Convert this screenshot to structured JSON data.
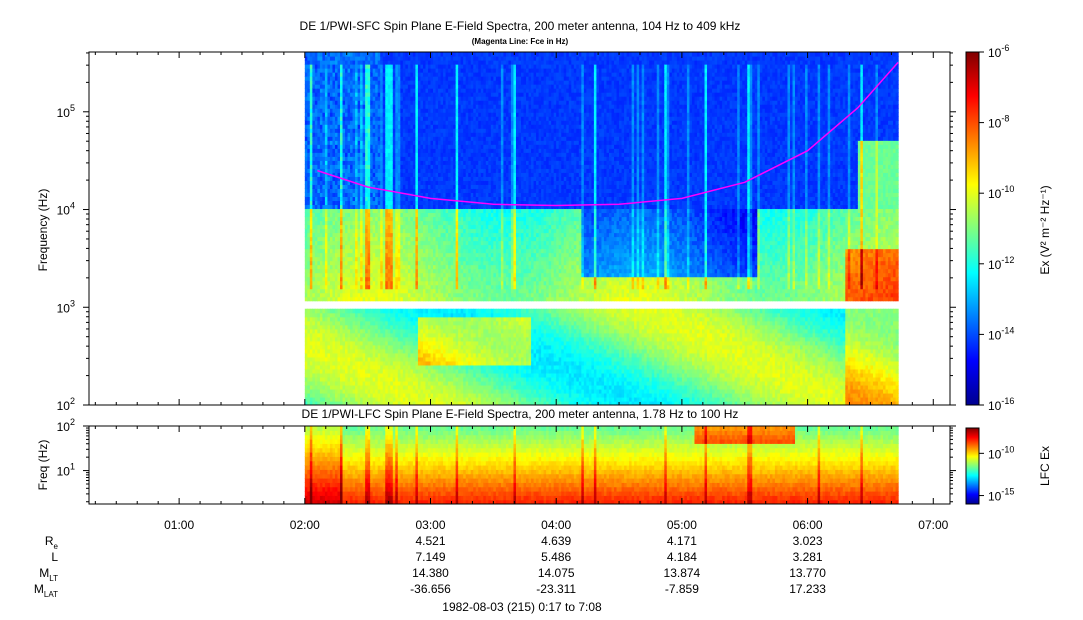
{
  "chart_data": [
    {
      "type": "heatmap",
      "title": "DE 1/PWI-SFC  Spin Plane E-Field Spectra, 200 meter antenna, 104 Hz to 409 kHz",
      "subtitle": "(Magenta Line: Fce in Hz)",
      "ylabel": "Frequency (Hz)",
      "yscale": "log",
      "ylim": [
        100,
        409000
      ],
      "y_ticks": [
        {
          "value": 100,
          "label_base": "10",
          "label_exp": "2"
        },
        {
          "value": 1000,
          "label_base": "10",
          "label_exp": "3"
        },
        {
          "value": 10000,
          "label_base": "10",
          "label_exp": "4"
        },
        {
          "value": 100000,
          "label_base": "10",
          "label_exp": "5"
        }
      ],
      "data_coverage_hours": [
        2.0,
        6.72
      ],
      "fce_line": {
        "name": "Fce",
        "color": "#ff00ff",
        "t_hours": [
          2.1,
          2.5,
          3.0,
          3.5,
          4.0,
          4.5,
          5.0,
          5.5,
          6.0,
          6.4,
          6.72
        ],
        "freq_hz": [
          25000,
          17000,
          13000,
          11300,
          11000,
          11300,
          13000,
          19000,
          40000,
          110000,
          320000
        ]
      },
      "colorbar": {
        "label": "Ex (V² m⁻² Hz⁻¹)",
        "scale": "log",
        "range": [
          1e-16,
          1e-06
        ],
        "ticks": [
          {
            "value": 1e-06,
            "label_base": "10",
            "label_exp": "-6"
          },
          {
            "value": 1e-08,
            "label_base": "10",
            "label_exp": "-8"
          },
          {
            "value": 1e-10,
            "label_base": "10",
            "label_exp": "-10"
          },
          {
            "value": 1e-12,
            "label_base": "10",
            "label_exp": "-12"
          },
          {
            "value": 1e-14,
            "label_base": "10",
            "label_exp": "-14"
          },
          {
            "value": 1e-16,
            "label_base": "10",
            "label_exp": "-16"
          }
        ]
      }
    },
    {
      "type": "heatmap",
      "title": "DE 1/PWI-LFC  Spin Plane E-Field Spectra, 200 meter antenna, 1.78 Hz to 100 Hz",
      "ylabel": "Freq (Hz)",
      "yscale": "log",
      "ylim": [
        1.78,
        100
      ],
      "y_ticks": [
        {
          "value": 10,
          "label_base": "10",
          "label_exp": "1"
        },
        {
          "value": 100,
          "label_base": "10",
          "label_exp": "2"
        }
      ],
      "data_coverage_hours": [
        2.0,
        6.72
      ],
      "colorbar": {
        "label": "LFC Ex",
        "scale": "log",
        "range": [
          1e-16,
          1e-07
        ],
        "ticks": [
          {
            "value": 1e-10,
            "label_base": "10",
            "label_exp": "-10"
          },
          {
            "value": 1e-15,
            "label_base": "10",
            "label_exp": "-15"
          }
        ]
      }
    }
  ],
  "time_axis": {
    "range_hours": [
      0.283,
      7.133
    ],
    "ticks": [
      {
        "hour": 1,
        "label": "01:00"
      },
      {
        "hour": 2,
        "label": "02:00"
      },
      {
        "hour": 3,
        "label": "03:00"
      },
      {
        "hour": 4,
        "label": "04:00"
      },
      {
        "hour": 5,
        "label": "05:00"
      },
      {
        "hour": 6,
        "label": "06:00"
      },
      {
        "hour": 7,
        "label": "07:00"
      }
    ]
  },
  "ephemeris": {
    "hours": [
      3,
      4,
      5,
      6
    ],
    "rows": [
      {
        "label": "R",
        "sub": "e",
        "values": [
          "4.521",
          "4.639",
          "4.171",
          "3.023"
        ]
      },
      {
        "label": "L",
        "sub": "",
        "values": [
          "7.149",
          "5.486",
          "4.184",
          "3.281"
        ]
      },
      {
        "label": "M",
        "sub": "LT",
        "values": [
          "14.380",
          "14.075",
          "13.874",
          "13.770"
        ]
      },
      {
        "label": "M",
        "sub": "LAT",
        "values": [
          "-36.656",
          "-23.311",
          "-7.859",
          "17.233"
        ]
      }
    ]
  },
  "footer": "1982-08-03 (215) 0:17 to 7:08"
}
